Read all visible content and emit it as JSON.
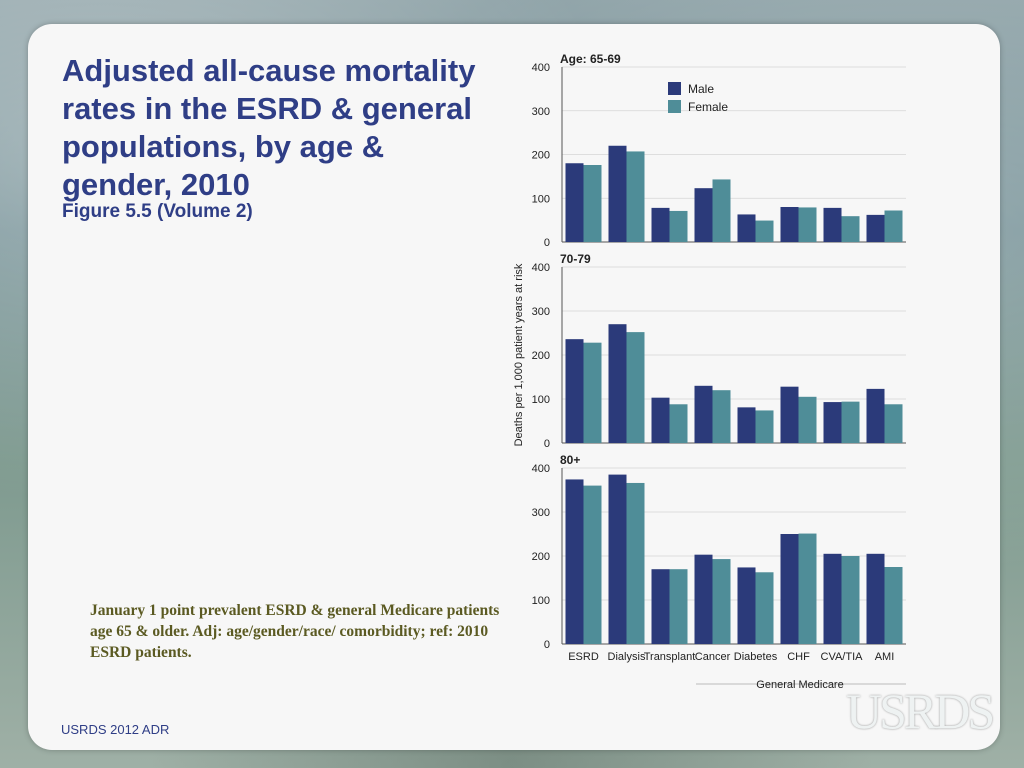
{
  "slide": {
    "title": "Adjusted all-cause mortality rates in the ESRD & general populations, by age & gender, 2010",
    "subtitle": "Figure 5.5 (Volume 2)",
    "note": "January 1 point prevalent ESRD & general Medicare patients age 65 & older. Adj: age/gender/race/ comorbidity; ref: 2010 ESRD patients.",
    "footer": "USRDS 2012 ADR",
    "logo": "USRDS"
  },
  "chart_data": {
    "type": "bar",
    "ylabel": "Deaths per 1,000 patient years at risk",
    "xgroup_label": "General Medicare",
    "categories": [
      "ESRD",
      "Dialysis",
      "Transplant",
      "Cancer",
      "Diabetes",
      "CHF",
      "CVA/TIA",
      "AMI"
    ],
    "ylim": [
      0,
      400
    ],
    "yticks": [
      "0",
      "100",
      "200",
      "300",
      "400"
    ],
    "legend": {
      "position": "top-right",
      "entries": [
        "Male",
        "Female"
      ]
    },
    "colors": {
      "Male": "#2b3a7a",
      "Female": "#4f8d98"
    },
    "grid": true,
    "panels": [
      {
        "label": "Age: 65-69",
        "series": [
          {
            "name": "Male",
            "values": [
              180,
              220,
              78,
              123,
              63,
              80,
              78,
              62
            ]
          },
          {
            "name": "Female",
            "values": [
              176,
              207,
              71,
              143,
              49,
              79,
              59,
              72
            ]
          }
        ]
      },
      {
        "label": "70-79",
        "series": [
          {
            "name": "Male",
            "values": [
              236,
              270,
              103,
              130,
              81,
              128,
              93,
              123
            ]
          },
          {
            "name": "Female",
            "values": [
              228,
              252,
              88,
              120,
              74,
              105,
              94,
              88
            ]
          }
        ]
      },
      {
        "label": "80+",
        "series": [
          {
            "name": "Male",
            "values": [
              374,
              385,
              170,
              203,
              174,
              250,
              205,
              205
            ]
          },
          {
            "name": "Female",
            "values": [
              360,
              366,
              170,
              193,
              163,
              251,
              200,
              175
            ]
          }
        ]
      }
    ]
  }
}
